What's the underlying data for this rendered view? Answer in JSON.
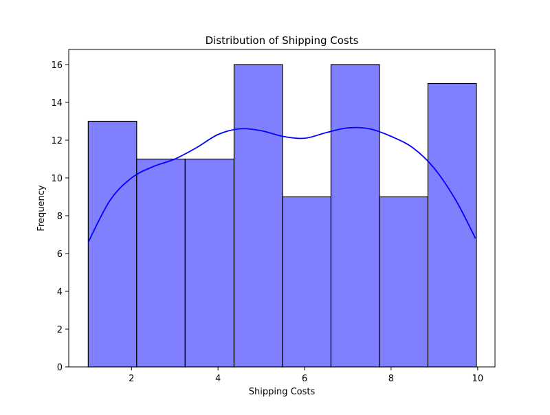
{
  "chart_data": {
    "type": "bar",
    "title": "Distribution of Shipping Costs",
    "xlabel": "Shipping Costs",
    "ylabel": "Frequency",
    "xlim": [
      0.55,
      10.4
    ],
    "ylim": [
      0,
      16.8
    ],
    "xticks": [
      2,
      4,
      6,
      8,
      10
    ],
    "yticks": [
      0,
      2,
      4,
      6,
      8,
      10,
      12,
      14,
      16
    ],
    "grid": false,
    "legend": "none",
    "bins": [
      {
        "start": 1.0,
        "end": 2.12,
        "count": 13
      },
      {
        "start": 2.12,
        "end": 3.24,
        "count": 11
      },
      {
        "start": 3.24,
        "end": 4.37,
        "count": 11
      },
      {
        "start": 4.37,
        "end": 5.49,
        "count": 16
      },
      {
        "start": 5.49,
        "end": 6.61,
        "count": 9
      },
      {
        "start": 6.61,
        "end": 7.73,
        "count": 16
      },
      {
        "start": 7.73,
        "end": 8.85,
        "count": 9
      },
      {
        "start": 8.85,
        "end": 9.97,
        "count": 15
      }
    ],
    "kde": {
      "x": [
        1.0,
        1.5,
        2.0,
        2.5,
        3.0,
        3.5,
        4.0,
        4.5,
        5.0,
        5.5,
        6.0,
        6.5,
        7.0,
        7.5,
        8.0,
        8.5,
        9.0,
        9.5,
        9.95
      ],
      "y": [
        6.6,
        8.8,
        10.0,
        10.6,
        11.0,
        11.6,
        12.3,
        12.6,
        12.5,
        12.2,
        12.1,
        12.4,
        12.65,
        12.6,
        12.2,
        11.6,
        10.5,
        8.8,
        6.8
      ]
    },
    "colors": {
      "bar_fill": "#8080ff",
      "bar_edge": "#000000",
      "kde_line": "#0000ff"
    }
  }
}
